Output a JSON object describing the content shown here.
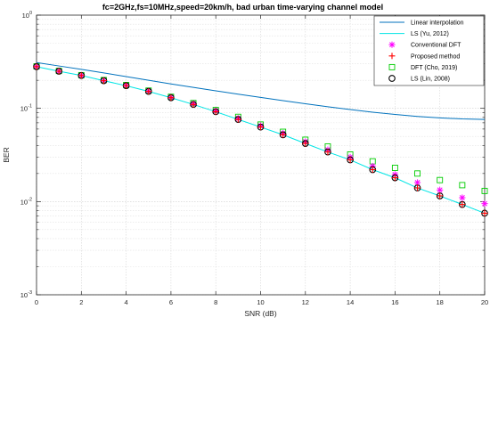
{
  "chart_data": {
    "type": "line",
    "title": "fc=2GHz,fs=10MHz,speed=20km/h, bad urban time-varying channel model",
    "xlabel": "SNR (dB)",
    "ylabel": "BER",
    "xlim": [
      0,
      20
    ],
    "ylim": [
      0.001,
      1
    ],
    "yscale": "log",
    "grid": true,
    "legend_position": "top-right",
    "x_ticks": [
      "0",
      "2",
      "4",
      "6",
      "8",
      "10",
      "12",
      "14",
      "16",
      "18",
      "20"
    ],
    "y_ticks": [
      {
        "base": "10",
        "exp": "0"
      },
      {
        "base": "10",
        "exp": "-1"
      },
      {
        "base": "10",
        "exp": "-2"
      },
      {
        "base": "10",
        "exp": "-3"
      }
    ],
    "x": [
      0,
      1,
      2,
      3,
      4,
      5,
      6,
      7,
      8,
      9,
      10,
      11,
      12,
      13,
      14,
      15,
      16,
      17,
      18,
      19,
      20
    ],
    "series": [
      {
        "name": "Linear interpolation",
        "style": "line",
        "color": "#0072BD",
        "values": [
          0.31,
          0.285,
          0.262,
          0.24,
          0.219,
          0.2,
          0.183,
          0.168,
          0.154,
          0.142,
          0.131,
          0.121,
          0.112,
          0.104,
          0.097,
          0.091,
          0.086,
          0.082,
          0.079,
          0.077,
          0.076
        ]
      },
      {
        "name": "LS (Yu, 2012)",
        "style": "line",
        "color": "#00E5E5",
        "values": [
          0.28,
          0.25,
          0.225,
          0.198,
          0.175,
          0.152,
          0.13,
          0.11,
          0.092,
          0.076,
          0.063,
          0.052,
          0.042,
          0.034,
          0.028,
          0.022,
          0.018,
          0.014,
          0.0115,
          0.0093,
          0.0075
        ]
      },
      {
        "name": "Conventional DFT",
        "style": "marker",
        "marker": "asterisk",
        "color": "#FF00FF",
        "values": [
          0.28,
          0.25,
          0.225,
          0.199,
          0.176,
          0.153,
          0.131,
          0.112,
          0.094,
          0.078,
          0.065,
          0.054,
          0.044,
          0.036,
          0.03,
          0.024,
          0.0195,
          0.016,
          0.0133,
          0.011,
          0.0095
        ]
      },
      {
        "name": "Proposed method",
        "style": "marker",
        "marker": "plus",
        "color": "#FF0000",
        "values": [
          0.28,
          0.25,
          0.225,
          0.198,
          0.175,
          0.152,
          0.13,
          0.11,
          0.092,
          0.076,
          0.063,
          0.052,
          0.042,
          0.034,
          0.028,
          0.022,
          0.018,
          0.014,
          0.0115,
          0.0093,
          0.0075
        ]
      },
      {
        "name": "DFT (Cho, 2019)",
        "style": "marker",
        "marker": "square",
        "color": "#00CC00",
        "values": [
          0.282,
          0.252,
          0.227,
          0.201,
          0.178,
          0.155,
          0.133,
          0.114,
          0.096,
          0.081,
          0.067,
          0.056,
          0.046,
          0.039,
          0.032,
          0.027,
          0.023,
          0.02,
          0.017,
          0.015,
          0.013
        ]
      },
      {
        "name": "LS (Lin, 2008)",
        "style": "marker",
        "marker": "circle",
        "color": "#000000",
        "values": [
          0.28,
          0.25,
          0.225,
          0.198,
          0.175,
          0.152,
          0.13,
          0.11,
          0.092,
          0.076,
          0.063,
          0.052,
          0.042,
          0.034,
          0.028,
          0.022,
          0.018,
          0.014,
          0.0115,
          0.0093,
          0.0075
        ]
      }
    ]
  }
}
